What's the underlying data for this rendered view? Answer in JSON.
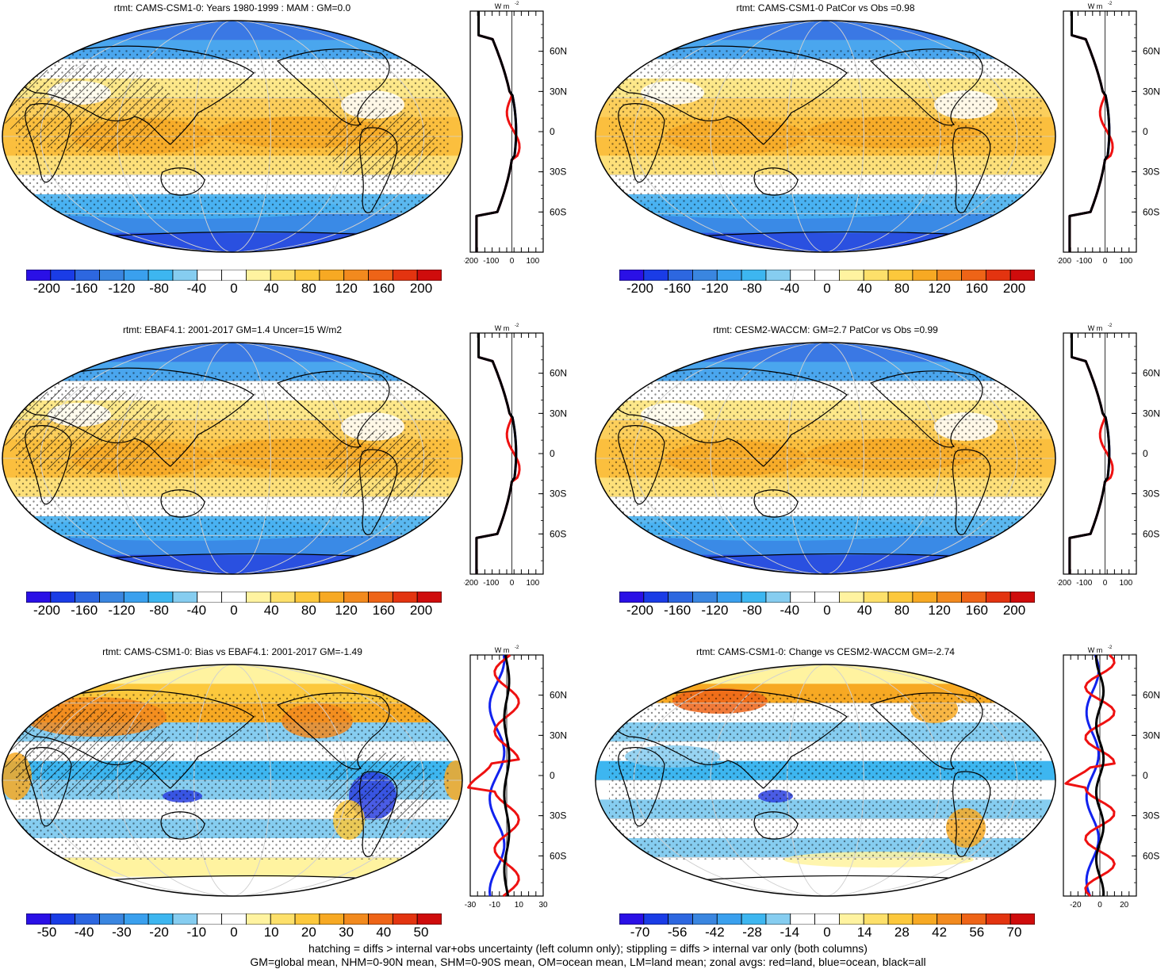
{
  "footer": {
    "line1": "hatching = diffs > internal var+obs uncertainty (left column only); stippling = diffs > internal var only (both columns)",
    "line2": "GM=global mean, NHM=0-90N mean, SHM=0-90S mean, OM=ocean mean, LM=land mean; zonal avgs: red=land, blue=ocean, black=all"
  },
  "zonal_unit": "W m",
  "zonal_unit_sup": "-2",
  "lat_labels": [
    "60N",
    "30N",
    "0",
    "30S",
    "60S"
  ],
  "colors": {
    "land": "#ee1111",
    "ocean": "#1122ee",
    "all": "#000000",
    "coast": "#000000",
    "grid": "#cccccc"
  },
  "panels": [
    {
      "id": "p1",
      "title": "rtmt: CAMS-CSM1-0: Years 1980-1999 : MAM : GM=0.0",
      "kind": "clim",
      "hatch": true,
      "stipple": true,
      "cbar_labels": [
        "-200",
        "-160",
        "-120",
        "-80",
        "-40",
        "0",
        "40",
        "80",
        "120",
        "160",
        "200"
      ],
      "zonal_ticks": [
        "-200",
        "-100",
        "0",
        "100"
      ],
      "zonal_range": [
        -200,
        150
      ]
    },
    {
      "id": "p2",
      "title": "rtmt: CAMS-CSM1-0 PatCor vs Obs =0.98",
      "kind": "clim",
      "hatch": false,
      "stipple": true,
      "cbar_labels": [
        "-200",
        "-160",
        "-120",
        "-80",
        "-40",
        "0",
        "40",
        "80",
        "120",
        "160",
        "200"
      ],
      "zonal_ticks": [
        "-200",
        "-100",
        "0",
        "100"
      ],
      "zonal_range": [
        -200,
        150
      ]
    },
    {
      "id": "p3",
      "title": "rtmt: EBAF4.1: 2001-2017 GM=1.4 Uncer=15 W/m2",
      "kind": "clim",
      "hatch": true,
      "stipple": true,
      "cbar_labels": [
        "-200",
        "-160",
        "-120",
        "-80",
        "-40",
        "0",
        "40",
        "80",
        "120",
        "160",
        "200"
      ],
      "zonal_ticks": [
        "-200",
        "-100",
        "0",
        "100"
      ],
      "zonal_range": [
        -200,
        150
      ]
    },
    {
      "id": "p4",
      "title": "rtmt: CESM2-WACCM: GM=2.7 PatCor vs Obs =0.99",
      "kind": "clim",
      "hatch": false,
      "stipple": true,
      "cbar_labels": [
        "-200",
        "-160",
        "-120",
        "-80",
        "-40",
        "0",
        "40",
        "80",
        "120",
        "160",
        "200"
      ],
      "zonal_ticks": [
        "-200",
        "-100",
        "0",
        "100"
      ],
      "zonal_range": [
        -200,
        150
      ]
    },
    {
      "id": "p5",
      "title": "rtmt: CAMS-CSM1-0: Bias vs EBAF4.1: 2001-2017 GM=-1.49",
      "kind": "bias",
      "hatch": true,
      "stipple": true,
      "cbar_labels": [
        "-50",
        "-40",
        "-30",
        "-20",
        "-10",
        "0",
        "10",
        "20",
        "30",
        "40",
        "50"
      ],
      "zonal_ticks": [
        "-30",
        "-10",
        "10",
        "30"
      ],
      "zonal_range": [
        -30,
        30
      ]
    },
    {
      "id": "p6",
      "title": "rtmt: CAMS-CSM1-0: Change vs CESM2-WACCM GM=-2.74",
      "kind": "change",
      "hatch": false,
      "stipple": true,
      "cbar_labels": [
        "-70",
        "-56",
        "-42",
        "-28",
        "-14",
        "0",
        "14",
        "28",
        "42",
        "56",
        "70"
      ],
      "zonal_ticks": [
        "-20",
        "0",
        "20"
      ],
      "zonal_range": [
        -30,
        30
      ]
    }
  ]
}
